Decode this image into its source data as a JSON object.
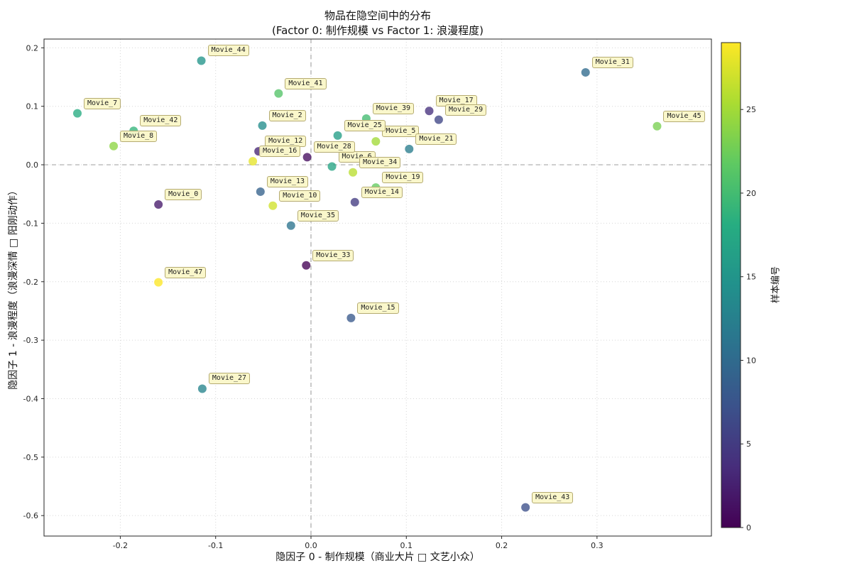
{
  "chart_data": {
    "type": "scatter",
    "title": "物品在隐空间中的分布",
    "subtitle": "(Factor 0: 制作规模 vs Factor 1: 浪漫程度)",
    "xlabel": "隐因子 0 - 制作规模（商业大片 □ 文艺小众）",
    "ylabel": "隐因子 1 - 浪漫程度（浪漫深情 □ 阳刚动作）",
    "xlim": [
      -0.28,
      0.42
    ],
    "ylim": [
      -0.635,
      0.215
    ],
    "xticks": [
      -0.2,
      -0.1,
      0.0,
      0.1,
      0.2,
      0.3
    ],
    "yticks": [
      0.2,
      0.1,
      0.0,
      -0.1,
      -0.2,
      -0.3,
      -0.4,
      -0.5,
      -0.6
    ],
    "grid": true,
    "zero_lines": true,
    "legend_position": "none",
    "style": {
      "grid_color": "#d6d6d6",
      "zero_line_color": "#a8a8a8",
      "frame_color": "#262626",
      "tick_color": "#262626",
      "point_opacity": 0.78,
      "point_radius": 6,
      "label_box_fill": "#faf6c7",
      "label_box_border": "#b5ab72"
    },
    "colorbar": {
      "label": "样本编号",
      "min": 0,
      "max": 29,
      "ticks": [
        0,
        5,
        10,
        15,
        20,
        25
      ],
      "colormap": "viridis",
      "stops": [
        "#440154",
        "#472d7b",
        "#3b528b",
        "#2c728e",
        "#21918c",
        "#27ad81",
        "#5ec962",
        "#aadc32",
        "#fde725"
      ]
    },
    "points": [
      {
        "label": "Movie_0",
        "x": -0.16,
        "y": -0.068,
        "sample": 2
      },
      {
        "label": "Movie_2",
        "x": -0.051,
        "y": 0.067,
        "sample": 14
      },
      {
        "label": "Movie_5",
        "x": 0.068,
        "y": 0.04,
        "sample": 25
      },
      {
        "label": "Movie_6",
        "x": 0.022,
        "y": -0.003,
        "sample": 17
      },
      {
        "label": "Movie_7",
        "x": -0.245,
        "y": 0.088,
        "sample": 18
      },
      {
        "label": "Movie_8",
        "x": -0.207,
        "y": 0.032,
        "sample": 24
      },
      {
        "label": "Movie_10",
        "x": -0.04,
        "y": -0.07,
        "sample": 27
      },
      {
        "label": "Movie_12",
        "x": -0.055,
        "y": 0.023,
        "sample": 3
      },
      {
        "label": "Movie_13",
        "x": -0.053,
        "y": -0.046,
        "sample": 9
      },
      {
        "label": "Movie_14",
        "x": 0.046,
        "y": -0.064,
        "sample": 5
      },
      {
        "label": "Movie_15",
        "x": 0.042,
        "y": -0.262,
        "sample": 8
      },
      {
        "label": "Movie_16",
        "x": -0.061,
        "y": 0.006,
        "sample": 28
      },
      {
        "label": "Movie_17",
        "x": 0.124,
        "y": 0.092,
        "sample": 4
      },
      {
        "label": "Movie_19",
        "x": 0.068,
        "y": -0.039,
        "sample": 22
      },
      {
        "label": "Movie_21",
        "x": 0.103,
        "y": 0.027,
        "sample": 12
      },
      {
        "label": "Movie_25",
        "x": 0.028,
        "y": 0.05,
        "sample": 16
      },
      {
        "label": "Movie_27",
        "x": -0.114,
        "y": -0.383,
        "sample": 13
      },
      {
        "label": "Movie_28",
        "x": -0.004,
        "y": 0.013,
        "sample": 1
      },
      {
        "label": "Movie_29",
        "x": 0.134,
        "y": 0.077,
        "sample": 6
      },
      {
        "label": "Movie_31",
        "x": 0.288,
        "y": 0.158,
        "sample": 10
      },
      {
        "label": "Movie_33",
        "x": -0.005,
        "y": -0.172,
        "sample": 0
      },
      {
        "label": "Movie_34",
        "x": 0.044,
        "y": -0.013,
        "sample": 26
      },
      {
        "label": "Movie_35",
        "x": -0.021,
        "y": -0.104,
        "sample": 11
      },
      {
        "label": "Movie_39",
        "x": 0.058,
        "y": 0.079,
        "sample": 20
      },
      {
        "label": "Movie_41",
        "x": -0.034,
        "y": 0.122,
        "sample": 21
      },
      {
        "label": "Movie_42",
        "x": -0.186,
        "y": 0.058,
        "sample": 19
      },
      {
        "label": "Movie_43",
        "x": 0.225,
        "y": -0.586,
        "sample": 7
      },
      {
        "label": "Movie_44",
        "x": -0.115,
        "y": 0.178,
        "sample": 15
      },
      {
        "label": "Movie_45",
        "x": 0.363,
        "y": 0.066,
        "sample": 23
      },
      {
        "label": "Movie_47",
        "x": -0.16,
        "y": -0.201,
        "sample": 29
      }
    ]
  }
}
